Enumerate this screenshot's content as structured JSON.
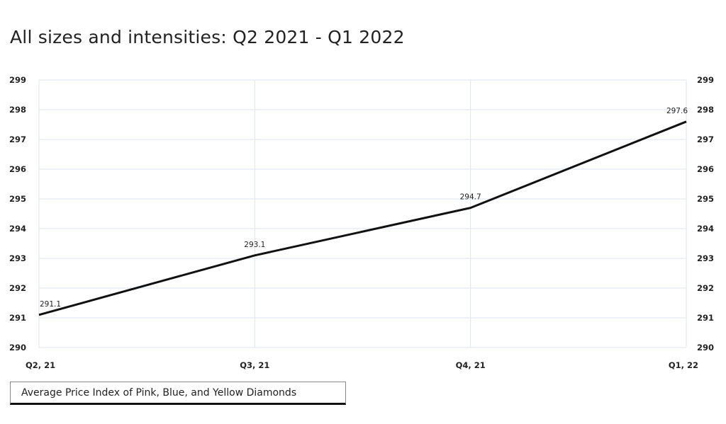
{
  "chart_data": {
    "type": "line",
    "title": "All sizes and intensities: Q2 2021 - Q1 2022",
    "categories": [
      "Q2, 21",
      "Q3, 21",
      "Q4, 21",
      "Q1, 22"
    ],
    "series": [
      {
        "name": "Average Price Index of Pink, Blue, and Yellow Diamonds",
        "values": [
          291.1,
          293.1,
          294.7,
          297.6
        ]
      }
    ],
    "data_labels": [
      "291.1",
      "293.1",
      "294.7",
      "297.6"
    ],
    "ylim": [
      290,
      299
    ],
    "yticks": [
      290,
      291,
      292,
      293,
      294,
      295,
      296,
      297,
      298,
      299
    ],
    "secondary_y_axis": true,
    "grid": true,
    "legend_position": "bottom-left",
    "colors": {
      "line": "#111111",
      "grid": "#dde6ee",
      "text": "#222222"
    }
  }
}
